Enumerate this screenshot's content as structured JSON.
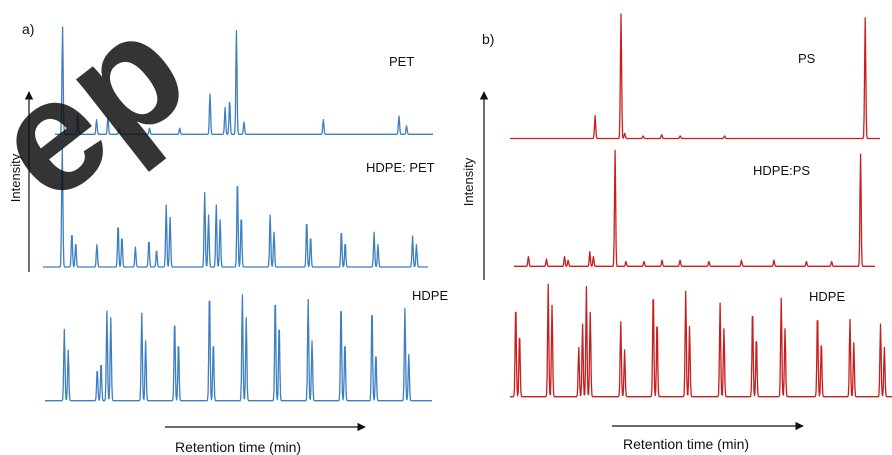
{
  "chart_data": [
    {
      "type": "line",
      "panel_label": "a)",
      "ylabel": "Intensity",
      "xlabel": "Retention time (min)",
      "color": "#3d7fc0",
      "watermark_text": "ep",
      "watermark_color": "#e36fae",
      "xlim": [
        0,
        100
      ],
      "series": [
        {
          "name": "PET",
          "baseline": 0.03,
          "peaks": [
            {
              "x": 2.0,
              "h": 0.88
            },
            {
              "x": 6.0,
              "h": 0.16
            },
            {
              "x": 11.0,
              "h": 0.12
            },
            {
              "x": 14.0,
              "h": 0.14
            },
            {
              "x": 17.0,
              "h": 0.05
            },
            {
              "x": 25.0,
              "h": 0.05
            },
            {
              "x": 33.0,
              "h": 0.05
            },
            {
              "x": 41.0,
              "h": 0.33
            },
            {
              "x": 45.0,
              "h": 0.22
            },
            {
              "x": 46.2,
              "h": 0.28
            },
            {
              "x": 48.0,
              "h": 0.85
            },
            {
              "x": 50.0,
              "h": 0.1
            },
            {
              "x": 71.0,
              "h": 0.12
            },
            {
              "x": 91.0,
              "h": 0.15
            },
            {
              "x": 93.0,
              "h": 0.07
            }
          ]
        },
        {
          "name": "HDPE: PET",
          "baseline": 0.04,
          "peaks": [
            {
              "x": 5.0,
              "h": 0.98
            },
            {
              "x": 7.5,
              "h": 0.28
            },
            {
              "x": 8.5,
              "h": 0.2
            },
            {
              "x": 14.0,
              "h": 0.18
            },
            {
              "x": 19.5,
              "h": 0.35
            },
            {
              "x": 20.5,
              "h": 0.25
            },
            {
              "x": 24.0,
              "h": 0.16
            },
            {
              "x": 27.5,
              "h": 0.22
            },
            {
              "x": 29.5,
              "h": 0.14
            },
            {
              "x": 32.0,
              "h": 0.5
            },
            {
              "x": 33.0,
              "h": 0.4
            },
            {
              "x": 42.0,
              "h": 0.6
            },
            {
              "x": 43.0,
              "h": 0.42
            },
            {
              "x": 45.0,
              "h": 0.5
            },
            {
              "x": 46.0,
              "h": 0.38
            },
            {
              "x": 50.5,
              "h": 0.72
            },
            {
              "x": 51.5,
              "h": 0.42
            },
            {
              "x": 59.0,
              "h": 0.42
            },
            {
              "x": 60.0,
              "h": 0.28
            },
            {
              "x": 68.5,
              "h": 0.38
            },
            {
              "x": 69.5,
              "h": 0.25
            },
            {
              "x": 77.5,
              "h": 0.3
            },
            {
              "x": 78.5,
              "h": 0.2
            },
            {
              "x": 86.0,
              "h": 0.28
            },
            {
              "x": 87.0,
              "h": 0.18
            },
            {
              "x": 96.0,
              "h": 0.25
            },
            {
              "x": 97.0,
              "h": 0.18
            }
          ]
        },
        {
          "name": "HDPE",
          "baseline": 0.02,
          "peaks": [
            {
              "x": 5.0,
              "h": 0.62
            },
            {
              "x": 6.0,
              "h": 0.44
            },
            {
              "x": 13.5,
              "h": 0.28
            },
            {
              "x": 14.5,
              "h": 0.34
            },
            {
              "x": 16.0,
              "h": 0.78
            },
            {
              "x": 17.0,
              "h": 0.72
            },
            {
              "x": 25.0,
              "h": 0.76
            },
            {
              "x": 26.0,
              "h": 0.52
            },
            {
              "x": 33.5,
              "h": 0.72
            },
            {
              "x": 34.5,
              "h": 0.52
            },
            {
              "x": 42.5,
              "h": 0.96
            },
            {
              "x": 43.5,
              "h": 0.52
            },
            {
              "x": 51.0,
              "h": 0.92
            },
            {
              "x": 52.0,
              "h": 0.72
            },
            {
              "x": 59.5,
              "h": 0.92
            },
            {
              "x": 60.5,
              "h": 0.68
            },
            {
              "x": 68.0,
              "h": 0.88
            },
            {
              "x": 69.0,
              "h": 0.52
            },
            {
              "x": 76.5,
              "h": 0.86
            },
            {
              "x": 77.5,
              "h": 0.52
            },
            {
              "x": 84.5,
              "h": 0.82
            },
            {
              "x": 85.5,
              "h": 0.42
            },
            {
              "x": 93.0,
              "h": 0.8
            },
            {
              "x": 94.0,
              "h": 0.4
            }
          ]
        }
      ]
    },
    {
      "type": "line",
      "panel_label": "b)",
      "ylabel": "Intensity",
      "xlabel": "Retention time (min)",
      "color": "#c81e1e",
      "xlim": [
        0,
        100
      ],
      "series": [
        {
          "name": "PS",
          "baseline": 0.02,
          "peaks": [
            {
              "x": 23.0,
              "h": 0.18
            },
            {
              "x": 30.0,
              "h": 1.0
            },
            {
              "x": 31.0,
              "h": 0.04
            },
            {
              "x": 36.0,
              "h": 0.02
            },
            {
              "x": 41.0,
              "h": 0.03
            },
            {
              "x": 46.0,
              "h": 0.02
            },
            {
              "x": 58.0,
              "h": 0.02
            },
            {
              "x": 96.0,
              "h": 0.95
            }
          ]
        },
        {
          "name": "HDPE:PS",
          "baseline": 0.03,
          "peaks": [
            {
              "x": 4.0,
              "h": 0.08
            },
            {
              "x": 9.0,
              "h": 0.06
            },
            {
              "x": 14.0,
              "h": 0.08
            },
            {
              "x": 15.0,
              "h": 0.05
            },
            {
              "x": 21.0,
              "h": 0.12
            },
            {
              "x": 22.0,
              "h": 0.08
            },
            {
              "x": 28.0,
              "h": 0.95
            },
            {
              "x": 31.0,
              "h": 0.04
            },
            {
              "x": 36.0,
              "h": 0.04
            },
            {
              "x": 41.0,
              "h": 0.05
            },
            {
              "x": 46.0,
              "h": 0.05
            },
            {
              "x": 54.0,
              "h": 0.04
            },
            {
              "x": 63.0,
              "h": 0.05
            },
            {
              "x": 72.0,
              "h": 0.05
            },
            {
              "x": 81.0,
              "h": 0.04
            },
            {
              "x": 88.0,
              "h": 0.04
            },
            {
              "x": 96.0,
              "h": 0.92
            }
          ]
        },
        {
          "name": "HDPE",
          "baseline": 0.02,
          "peaks": [
            {
              "x": 1.5,
              "h": 0.8
            },
            {
              "x": 2.5,
              "h": 0.55
            },
            {
              "x": 10.0,
              "h": 0.96
            },
            {
              "x": 11.0,
              "h": 0.78
            },
            {
              "x": 18.0,
              "h": 0.42
            },
            {
              "x": 19.0,
              "h": 0.62
            },
            {
              "x": 20.0,
              "h": 0.94
            },
            {
              "x": 21.0,
              "h": 0.72
            },
            {
              "x": 29.0,
              "h": 0.64
            },
            {
              "x": 30.0,
              "h": 0.4
            },
            {
              "x": 37.5,
              "h": 0.92
            },
            {
              "x": 38.5,
              "h": 0.66
            },
            {
              "x": 46.0,
              "h": 0.9
            },
            {
              "x": 47.0,
              "h": 0.6
            },
            {
              "x": 55.0,
              "h": 0.8
            },
            {
              "x": 56.0,
              "h": 0.58
            },
            {
              "x": 63.5,
              "h": 0.76
            },
            {
              "x": 64.5,
              "h": 0.52
            },
            {
              "x": 71.0,
              "h": 0.84
            },
            {
              "x": 72.0,
              "h": 0.58
            },
            {
              "x": 80.5,
              "h": 0.72
            },
            {
              "x": 81.5,
              "h": 0.48
            },
            {
              "x": 89.0,
              "h": 0.66
            },
            {
              "x": 90.0,
              "h": 0.46
            },
            {
              "x": 97.0,
              "h": 0.62
            },
            {
              "x": 98.0,
              "h": 0.42
            }
          ]
        }
      ]
    }
  ]
}
